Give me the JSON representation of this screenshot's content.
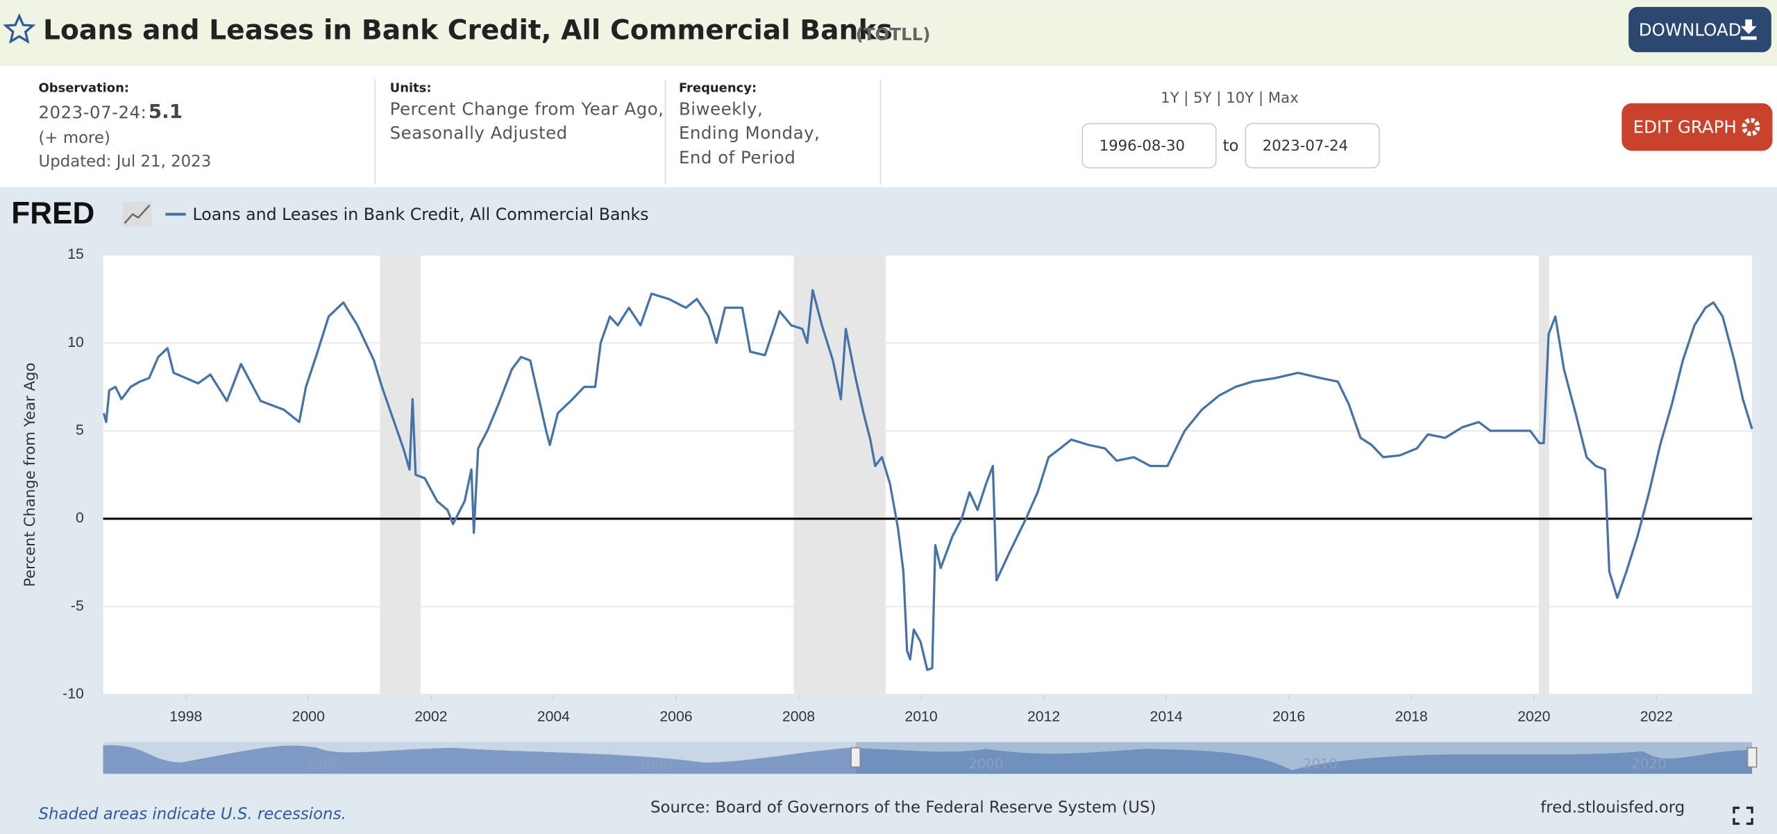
{
  "header": {
    "title": "Loans and Leases in Bank Credit, All Commercial Banks",
    "series_id": "(TOTLL)",
    "download": "DOWNLOAD"
  },
  "observation": {
    "label": "Observation:",
    "date": "2023-07-24:",
    "value": "5.1",
    "more": "(+ more)",
    "updated": "Updated: Jul 21, 2023"
  },
  "units": {
    "label": "Units:",
    "lines": [
      "Percent Change from Year Ago,",
      "Seasonally Adjusted"
    ]
  },
  "frequency": {
    "label": "Frequency:",
    "lines": [
      "Biweekly,",
      "Ending Monday,",
      "End of Period"
    ]
  },
  "range": {
    "presets": "1Y | 5Y | 10Y | Max",
    "start": "1996-08-30",
    "to": "to",
    "end": "2023-07-24"
  },
  "edit_graph": "EDIT GRAPH",
  "logo": "FRED",
  "chart_data": {
    "type": "line",
    "y_label": "Percent Change from Year Ago",
    "x": [
      1996.66,
      1996.7,
      1996.75,
      1996.85,
      1996.95,
      1997.1,
      1997.25,
      1997.4,
      1997.55,
      1997.7,
      1997.8,
      1998.0,
      1998.2,
      1998.4,
      1998.67,
      1998.9,
      1999.22,
      1999.6,
      1999.85,
      1999.96,
      2000.15,
      2000.33,
      2000.57,
      2000.8,
      2001.07,
      2001.2,
      2001.4,
      2001.55,
      2001.65,
      2001.7,
      2001.75,
      2001.9,
      2002.1,
      2002.27,
      2002.36,
      2002.55,
      2002.66,
      2002.7,
      2002.77,
      2002.92,
      2003.1,
      2003.32,
      2003.47,
      2003.62,
      2003.75,
      2003.88,
      2003.94,
      2004.07,
      2004.31,
      2004.5,
      2004.68,
      2004.77,
      2004.92,
      2005.05,
      2005.23,
      2005.42,
      2005.6,
      2005.88,
      2006.16,
      2006.34,
      2006.53,
      2006.66,
      2006.8,
      2007.08,
      2007.21,
      2007.45,
      2007.69,
      2007.88,
      2008.06,
      2008.14,
      2008.23,
      2008.38,
      2008.56,
      2008.69,
      2008.77,
      2008.93,
      2009.06,
      2009.17,
      2009.25,
      2009.36,
      2009.49,
      2009.62,
      2009.71,
      2009.77,
      2009.82,
      2009.88,
      2009.99,
      2010.1,
      2010.18,
      2010.23,
      2010.32,
      2010.51,
      2010.66,
      2010.79,
      2010.92,
      2011.06,
      2011.17,
      2011.23,
      2011.43,
      2011.71,
      2011.9,
      2012.08,
      2012.27,
      2012.45,
      2012.73,
      2013.0,
      2013.19,
      2013.47,
      2013.74,
      2014.02,
      2014.3,
      2014.58,
      2014.86,
      2015.13,
      2015.41,
      2015.78,
      2016.15,
      2016.52,
      2016.8,
      2016.98,
      2017.17,
      2017.35,
      2017.54,
      2017.81,
      2018.09,
      2018.27,
      2018.55,
      2018.83,
      2019.1,
      2019.29,
      2019.66,
      2019.94,
      2020.09,
      2020.16,
      2020.24,
      2020.35,
      2020.49,
      2020.68,
      2020.86,
      2021.01,
      2021.16,
      2021.23,
      2021.36,
      2021.51,
      2021.69,
      2021.88,
      2022.06,
      2022.25,
      2022.43,
      2022.62,
      2022.8,
      2022.93,
      2023.08,
      2023.27,
      2023.41,
      2023.56
    ],
    "series": [
      {
        "name": "Loans and Leases in Bank Credit, All Commercial Banks",
        "color": "#4572a7",
        "values": [
          6.0,
          5.5,
          7.3,
          7.5,
          6.8,
          7.5,
          7.8,
          8.0,
          9.2,
          9.7,
          8.3,
          8.0,
          7.7,
          8.2,
          6.7,
          8.8,
          6.7,
          6.2,
          5.5,
          7.5,
          9.5,
          11.5,
          12.3,
          11.0,
          9.0,
          7.5,
          5.5,
          4.0,
          2.8,
          6.8,
          2.5,
          2.3,
          1.0,
          0.5,
          -0.3,
          1.0,
          2.8,
          -0.8,
          4.0,
          5.0,
          6.5,
          8.5,
          9.2,
          9.0,
          7.0,
          5.0,
          4.2,
          6.0,
          6.8,
          7.5,
          7.5,
          10.0,
          11.5,
          11.0,
          12.0,
          11.0,
          12.8,
          12.5,
          12.0,
          12.5,
          11.5,
          10.0,
          12.0,
          12.0,
          9.5,
          9.3,
          11.8,
          11.0,
          10.8,
          10.0,
          13.0,
          11.0,
          9.0,
          6.8,
          10.8,
          8.0,
          6.0,
          4.5,
          3.0,
          3.5,
          2.0,
          -0.5,
          -3.0,
          -7.5,
          -8.0,
          -6.3,
          -7.0,
          -8.6,
          -8.5,
          -1.5,
          -2.8,
          -1.0,
          0.0,
          1.5,
          0.5,
          2.0,
          3.0,
          -3.5,
          -2.0,
          0.0,
          1.5,
          3.5,
          4.0,
          4.5,
          4.2,
          4.0,
          3.3,
          3.5,
          3.0,
          3.0,
          5.0,
          6.2,
          7.0,
          7.5,
          7.8,
          8.0,
          8.3,
          8.0,
          7.8,
          6.5,
          4.6,
          4.2,
          3.5,
          3.6,
          4.0,
          4.8,
          4.6,
          5.2,
          5.5,
          5.0,
          5.0,
          5.0,
          4.3,
          4.3,
          10.5,
          11.5,
          8.5,
          6.0,
          3.5,
          3.0,
          2.8,
          -3.0,
          -4.5,
          -3.0,
          -1.0,
          1.5,
          4.2,
          6.5,
          9.0,
          11.0,
          12.0,
          12.3,
          11.5,
          9.0,
          6.8,
          5.1
        ]
      }
    ],
    "xlim": [
      1996.65,
      2023.56
    ],
    "xticks": [
      1998,
      2000,
      2002,
      2004,
      2006,
      2008,
      2010,
      2012,
      2014,
      2016,
      2018,
      2020,
      2022
    ],
    "ylim": [
      -10,
      15
    ],
    "yticks": [
      -10,
      -5,
      0,
      5,
      10,
      15
    ],
    "grid": true,
    "recessions": [
      [
        2001.17,
        2001.83
      ],
      [
        2007.92,
        2009.42
      ],
      [
        2020.08,
        2020.25
      ]
    ],
    "recession_color": "#e6e6e6"
  },
  "navigator": {
    "labels": [
      "1980",
      "1990",
      "2000",
      "2010",
      "2020"
    ]
  },
  "footer": {
    "note": "Shaded areas indicate U.S. recessions.",
    "source": "Source: Board of Governors of the Federal Reserve System (US)",
    "site": "fred.stlouisfed.org"
  }
}
